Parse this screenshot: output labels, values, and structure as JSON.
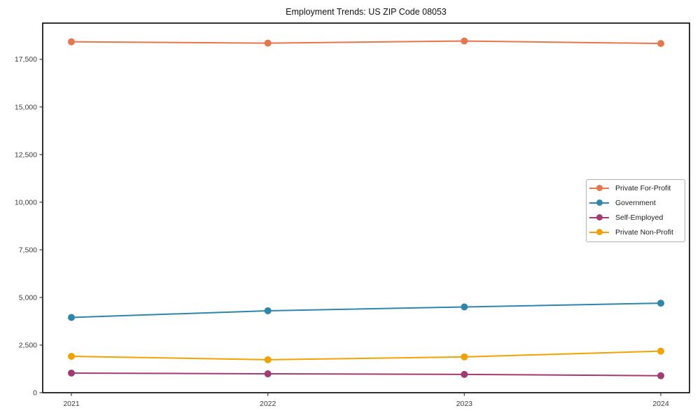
{
  "title": "Employment Trends: US ZIP Code 08053",
  "chart_data": {
    "type": "line",
    "categories": [
      "2021",
      "2022",
      "2023",
      "2024"
    ],
    "series": [
      {
        "name": "Private For-Profit",
        "color": "#E8764B",
        "values": [
          18420,
          18350,
          18460,
          18330
        ]
      },
      {
        "name": "Government",
        "color": "#2E86AB",
        "values": [
          3950,
          4300,
          4500,
          4700
        ]
      },
      {
        "name": "Self-Employed",
        "color": "#A23B72",
        "values": [
          1030,
          990,
          960,
          890
        ]
      },
      {
        "name": "Private Non-Profit",
        "color": "#F5A201",
        "values": [
          1910,
          1730,
          1880,
          2180
        ]
      }
    ],
    "xlabel": "",
    "ylabel": "",
    "ylim": [
      0,
      19400
    ],
    "y_ticks": [
      0,
      2500,
      5000,
      7500,
      10000,
      12500,
      15000,
      17500
    ],
    "y_tick_labels": [
      "0",
      "2,500",
      "5,000",
      "7,500",
      "10,000",
      "12,500",
      "15,000",
      "17,500"
    ],
    "grid": false,
    "legend_position": "center-right",
    "axis_color": "#000000",
    "tick_color": "#3c3c3c"
  }
}
